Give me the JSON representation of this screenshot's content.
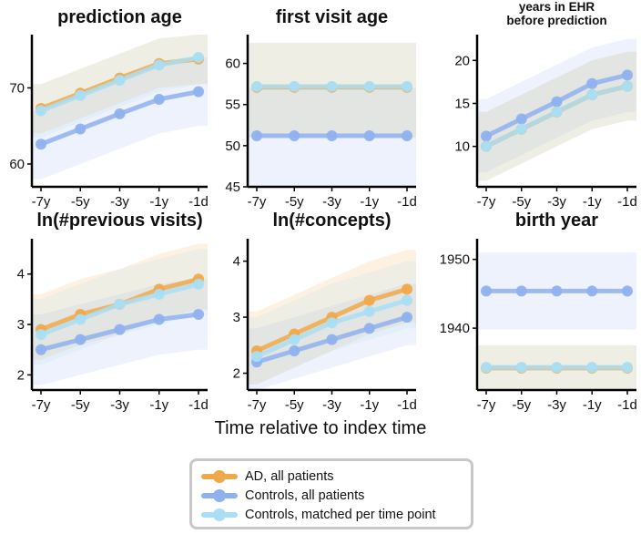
{
  "colors": {
    "ad": "#f0a94a",
    "controls_all": "#8fb1ee",
    "controls_matched": "#a9def4"
  },
  "legend": [
    {
      "key": "ad",
      "label": "AD, all patients"
    },
    {
      "key": "controls_all",
      "label": "Controls, all patients"
    },
    {
      "key": "controls_matched",
      "label": "Controls, matched per time point"
    }
  ],
  "xlabel": "Time relative to index time",
  "chart_data": [
    {
      "type": "line",
      "title": "prediction age",
      "categories": [
        "-7y",
        "-5y",
        "-3y",
        "-1y",
        "-1d"
      ],
      "ylim": [
        57,
        77
      ],
      "yticks": [
        60,
        70
      ],
      "ytick_labels": [
        "60",
        "70"
      ],
      "series": [
        {
          "key": "ad",
          "name": "AD, all patients",
          "values": [
            67.3,
            69.3,
            71.3,
            73.2,
            73.8
          ],
          "band": [
            [
              64,
              70.5
            ],
            [
              66,
              72.5
            ],
            [
              68,
              74.5
            ],
            [
              70,
              76.5
            ],
            [
              70.5,
              77
            ]
          ]
        },
        {
          "key": "controls_all",
          "name": "Controls, all patients",
          "values": [
            62.6,
            64.6,
            66.6,
            68.5,
            69.5
          ],
          "band": [
            [
              58,
              67
            ],
            [
              60,
              69
            ],
            [
              62,
              71
            ],
            [
              64,
              73
            ],
            [
              65,
              74
            ]
          ]
        },
        {
          "key": "controls_matched",
          "name": "Controls, matched per time point",
          "values": [
            67.0,
            69.0,
            71.0,
            73.0,
            74.0
          ],
          "band": [
            [
              63.5,
              70.5
            ],
            [
              65.5,
              72.5
            ],
            [
              67.5,
              74.5
            ],
            [
              69.5,
              76.5
            ],
            [
              70.5,
              77
            ]
          ]
        }
      ]
    },
    {
      "type": "line",
      "title": "first visit age",
      "categories": [
        "-7y",
        "-5y",
        "-3y",
        "-1y",
        "-1d"
      ],
      "ylim": [
        45,
        63.5
      ],
      "yticks": [
        45,
        50,
        55,
        60
      ],
      "ytick_labels": [
        "45",
        "50",
        "55",
        "60"
      ],
      "series": [
        {
          "key": "ad",
          "name": "AD, all patients",
          "values": [
            57.1,
            57.1,
            57.1,
            57.1,
            57.1
          ],
          "band": [
            [
              51,
              62.5
            ],
            [
              51,
              62.5
            ],
            [
              51,
              62.5
            ],
            [
              51,
              62.5
            ],
            [
              51,
              62.5
            ]
          ]
        },
        {
          "key": "controls_all",
          "name": "Controls, all patients",
          "values": [
            51.2,
            51.2,
            51.2,
            51.2,
            51.2
          ],
          "band": [
            [
              45,
              57
            ],
            [
              45,
              57
            ],
            [
              45,
              57
            ],
            [
              45,
              57
            ],
            [
              45,
              57
            ]
          ]
        },
        {
          "key": "controls_matched",
          "name": "Controls, matched per time point",
          "values": [
            57.2,
            57.2,
            57.2,
            57.2,
            57.2
          ],
          "band": [
            [
              51,
              62.5
            ],
            [
              51,
              62.5
            ],
            [
              51,
              62.5
            ],
            [
              51,
              62.5
            ],
            [
              51,
              62.5
            ]
          ]
        }
      ]
    },
    {
      "type": "line",
      "title": "years in EHR before prediction",
      "title_lines": [
        "years in EHR",
        "before prediction"
      ],
      "categories": [
        "-7y",
        "-5y",
        "-3y",
        "-1y",
        "-1d"
      ],
      "ylim": [
        5.3,
        23
      ],
      "yticks": [
        10,
        15,
        20
      ],
      "ytick_labels": [
        "10",
        "15",
        "20"
      ],
      "series": [
        {
          "key": "ad",
          "name": "AD, all patients",
          "values": [
            10.0,
            12.0,
            14.0,
            16.0,
            17.0
          ],
          "band": [
            [
              6,
              14
            ],
            [
              8,
              16
            ],
            [
              10,
              18
            ],
            [
              12,
              20
            ],
            [
              13,
              21
            ]
          ]
        },
        {
          "key": "controls_all",
          "name": "Controls, all patients",
          "values": [
            11.2,
            13.2,
            15.2,
            17.3,
            18.3
          ],
          "band": [
            [
              7,
              15.5
            ],
            [
              9,
              17.5
            ],
            [
              11,
              19.5
            ],
            [
              13,
              21.5
            ],
            [
              14,
              22.5
            ]
          ]
        },
        {
          "key": "controls_matched",
          "name": "Controls, matched per time point",
          "values": [
            10.0,
            12.0,
            14.0,
            16.0,
            17.0
          ],
          "band": [
            [
              6,
              14
            ],
            [
              8,
              16
            ],
            [
              10,
              18
            ],
            [
              12,
              20
            ],
            [
              13,
              21
            ]
          ]
        }
      ]
    },
    {
      "type": "line",
      "title": "ln(#previous visits)",
      "categories": [
        "-7y",
        "-5y",
        "-3y",
        "-1y",
        "-1d"
      ],
      "ylim": [
        1.7,
        4.7
      ],
      "yticks": [
        2,
        3,
        4
      ],
      "ytick_labels": [
        "2",
        "3",
        "4"
      ],
      "series": [
        {
          "key": "ad",
          "name": "AD, all patients",
          "values": [
            2.9,
            3.2,
            3.4,
            3.7,
            3.9
          ],
          "band": [
            [
              2.3,
              3.6
            ],
            [
              2.6,
              3.9
            ],
            [
              2.8,
              4.1
            ],
            [
              3.1,
              4.4
            ],
            [
              3.3,
              4.6
            ]
          ]
        },
        {
          "key": "controls_all",
          "name": "Controls, all patients",
          "values": [
            2.5,
            2.7,
            2.9,
            3.1,
            3.2
          ],
          "band": [
            [
              1.8,
              3.2
            ],
            [
              2.0,
              3.4
            ],
            [
              2.2,
              3.6
            ],
            [
              2.4,
              3.8
            ],
            [
              2.5,
              3.9
            ]
          ]
        },
        {
          "key": "controls_matched",
          "name": "Controls, matched per time point",
          "values": [
            2.8,
            3.1,
            3.4,
            3.6,
            3.8
          ],
          "band": [
            [
              2.2,
              3.5
            ],
            [
              2.5,
              3.8
            ],
            [
              2.8,
              4.1
            ],
            [
              3.0,
              4.3
            ],
            [
              3.2,
              4.5
            ]
          ]
        }
      ]
    },
    {
      "type": "line",
      "title": "ln(#concepts)",
      "categories": [
        "-7y",
        "-5y",
        "-3y",
        "-1y",
        "-1d"
      ],
      "ylim": [
        1.7,
        4.4
      ],
      "yticks": [
        2,
        3,
        4
      ],
      "ytick_labels": [
        "2",
        "3",
        "4"
      ],
      "series": [
        {
          "key": "ad",
          "name": "AD, all patients",
          "values": [
            2.4,
            2.7,
            3.0,
            3.3,
            3.5
          ],
          "band": [
            [
              1.8,
              3.1
            ],
            [
              2.1,
              3.4
            ],
            [
              2.4,
              3.7
            ],
            [
              2.7,
              4.0
            ],
            [
              2.9,
              4.2
            ]
          ]
        },
        {
          "key": "controls_all",
          "name": "Controls, all patients",
          "values": [
            2.2,
            2.4,
            2.6,
            2.8,
            3.0
          ],
          "band": [
            [
              1.7,
              2.8
            ],
            [
              1.9,
              3.0
            ],
            [
              2.1,
              3.2
            ],
            [
              2.3,
              3.4
            ],
            [
              2.5,
              3.6
            ]
          ]
        },
        {
          "key": "controls_matched",
          "name": "Controls, matched per time point",
          "values": [
            2.3,
            2.6,
            2.9,
            3.1,
            3.3
          ],
          "band": [
            [
              1.8,
              3.0
            ],
            [
              2.1,
              3.3
            ],
            [
              2.4,
              3.6
            ],
            [
              2.6,
              3.8
            ],
            [
              2.8,
              4.0
            ]
          ]
        }
      ]
    },
    {
      "type": "line",
      "title": "birth year",
      "categories": [
        "-7y",
        "-5y",
        "-3y",
        "-1y",
        "-1d"
      ],
      "ylim": [
        1931,
        1953
      ],
      "yticks": [
        1940,
        1950
      ],
      "ytick_labels": [
        "1940",
        "1950"
      ],
      "series": [
        {
          "key": "ad",
          "name": "AD, all patients",
          "values": [
            1934.2,
            1934.2,
            1934.2,
            1934.2,
            1934.2
          ],
          "band": [
            [
              1931,
              1937.5
            ],
            [
              1931,
              1937.5
            ],
            [
              1931,
              1937.5
            ],
            [
              1931,
              1937.5
            ],
            [
              1931,
              1937.5
            ]
          ]
        },
        {
          "key": "controls_all",
          "name": "Controls, all patients",
          "values": [
            1945.4,
            1945.4,
            1945.4,
            1945.4,
            1945.4
          ],
          "band": [
            [
              1939.8,
              1951
            ],
            [
              1939.8,
              1951
            ],
            [
              1939.8,
              1951
            ],
            [
              1939.8,
              1951
            ],
            [
              1939.8,
              1951
            ]
          ]
        },
        {
          "key": "controls_matched",
          "name": "Controls, matched per time point",
          "values": [
            1934.3,
            1934.3,
            1934.3,
            1934.3,
            1934.3
          ],
          "band": [
            [
              1931,
              1937.5
            ],
            [
              1931,
              1937.5
            ],
            [
              1931,
              1937.5
            ],
            [
              1931,
              1937.5
            ],
            [
              1931,
              1937.5
            ]
          ]
        }
      ]
    }
  ]
}
